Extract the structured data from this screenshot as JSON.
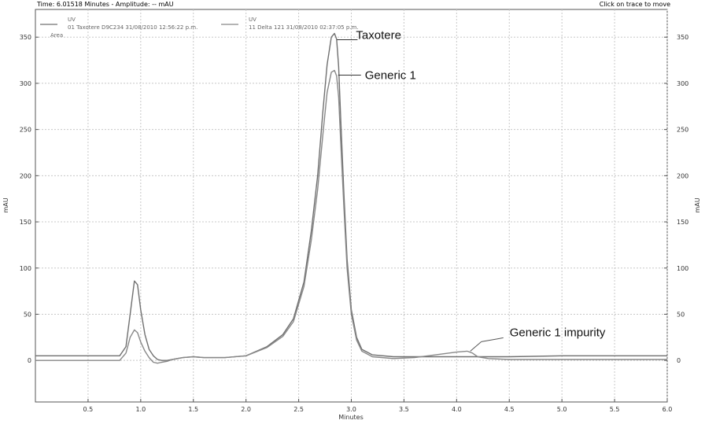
{
  "header": {
    "status": "Time: 6.01518 Minutes - Amplitude: -- mAU",
    "hint": "Click on trace to move"
  },
  "chart_data": {
    "type": "line",
    "xlabel": "Minutes",
    "ylabel": "mAU",
    "ylabel_right": "mAU",
    "xlim": [
      0,
      6.0
    ],
    "ylim": [
      -45,
      380
    ],
    "xticks": [
      0.5,
      1.0,
      1.5,
      2.0,
      2.5,
      3.0,
      3.5,
      4.0,
      4.5,
      5.0,
      5.5,
      6.0
    ],
    "xtick_labels": [
      "0.5",
      "1.0",
      "1.5",
      "2.0",
      "2.5",
      "3.0",
      "3.5",
      "4.0",
      "4.5",
      "5.0",
      "5.5",
      "6.0"
    ],
    "yticks": [
      0,
      50,
      100,
      150,
      200,
      250,
      300,
      350
    ],
    "ytick_labels": [
      "0",
      "50",
      "100",
      "150",
      "200",
      "250",
      "300",
      "350"
    ],
    "grid": true,
    "legend_placement": "top-left",
    "legend": [
      {
        "line1": "UV",
        "line2": "01 Taxotere D9C234 31/08/2010 12:56:22 p.m."
      },
      {
        "line1": "UV",
        "line2": "11 Delta 121 31/08/2010 02:37:05 p.m."
      }
    ],
    "legend_extra": "Area",
    "series": [
      {
        "name": "01 Taxotere D9C234 31/08/2010 12:56:22 p.m.",
        "color": "#707070",
        "x": [
          0,
          0.8,
          0.86,
          0.9,
          0.94,
          0.97,
          1.0,
          1.04,
          1.08,
          1.12,
          1.16,
          1.2,
          1.25,
          1.3,
          1.4,
          1.5,
          1.6,
          1.8,
          2.0,
          2.2,
          2.35,
          2.45,
          2.55,
          2.62,
          2.68,
          2.73,
          2.77,
          2.81,
          2.84,
          2.86,
          2.88,
          2.9,
          2.93,
          2.96,
          3.0,
          3.05,
          3.1,
          3.2,
          3.4,
          3.6,
          4.0,
          4.5,
          5.0,
          6.0
        ],
        "y": [
          5,
          5,
          15,
          50,
          86,
          82,
          55,
          28,
          12,
          5,
          1,
          0,
          0,
          1,
          3,
          4,
          3,
          3,
          5,
          15,
          28,
          45,
          85,
          140,
          200,
          270,
          320,
          350,
          354,
          348,
          318,
          260,
          180,
          110,
          55,
          25,
          12,
          6,
          4,
          4,
          4,
          4,
          5,
          5
        ]
      },
      {
        "name": "11 Delta 121 31/08/2010 02:37:05 p.m.",
        "color": "#888888",
        "x": [
          0,
          0.8,
          0.86,
          0.9,
          0.94,
          0.97,
          1.0,
          1.04,
          1.08,
          1.12,
          1.16,
          1.2,
          1.25,
          1.3,
          1.4,
          1.5,
          1.6,
          1.8,
          2.0,
          2.2,
          2.35,
          2.45,
          2.55,
          2.62,
          2.68,
          2.73,
          2.77,
          2.81,
          2.84,
          2.86,
          2.88,
          2.9,
          2.93,
          2.96,
          3.0,
          3.05,
          3.1,
          3.2,
          3.4,
          3.6,
          3.8,
          4.0,
          4.1,
          4.15,
          4.2,
          4.3,
          4.5,
          5.0,
          6.0
        ],
        "y": [
          0,
          0,
          8,
          25,
          33,
          30,
          20,
          10,
          3,
          -2,
          -3,
          -2,
          -1,
          1,
          3,
          4,
          3,
          3,
          5,
          14,
          26,
          42,
          80,
          130,
          185,
          245,
          290,
          312,
          314,
          308,
          285,
          235,
          165,
          100,
          50,
          22,
          10,
          4,
          2,
          3,
          6,
          9,
          10,
          8,
          4,
          2,
          1,
          1,
          1
        ]
      }
    ],
    "annotations": [
      {
        "text": "Taxotere",
        "x": 2.85,
        "y": 354
      },
      {
        "text": "Generic 1",
        "x": 2.86,
        "y": 314
      },
      {
        "text": "Generic 1 impurity",
        "x": 4.13,
        "y": 10
      }
    ]
  }
}
